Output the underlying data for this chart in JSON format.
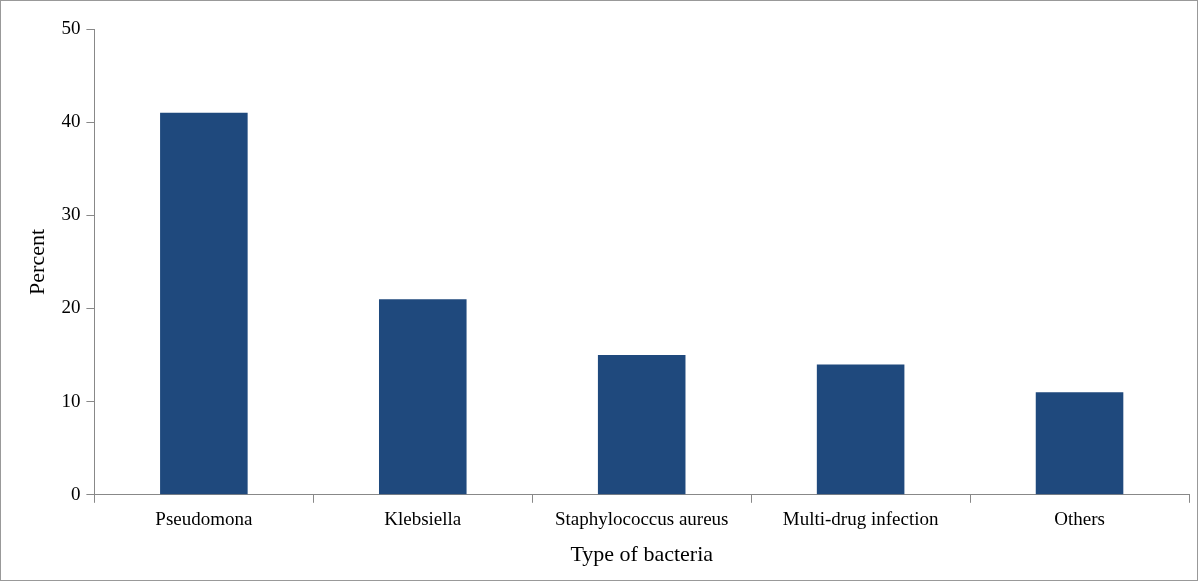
{
  "chart_data": {
    "type": "bar",
    "xlabel": "Type of bacteria",
    "ylabel": "Percent",
    "categories": [
      "Pseudomona",
      "Klebsiella",
      "Staphylococcus aureus",
      "Multi-drug infection",
      "Others"
    ],
    "values": [
      41,
      21,
      15,
      14,
      11
    ],
    "color": "#1f497d",
    "ylim": [
      0,
      50
    ],
    "yticks": [
      0,
      10,
      20,
      30,
      40,
      50
    ],
    "grid": false,
    "legend": false
  }
}
